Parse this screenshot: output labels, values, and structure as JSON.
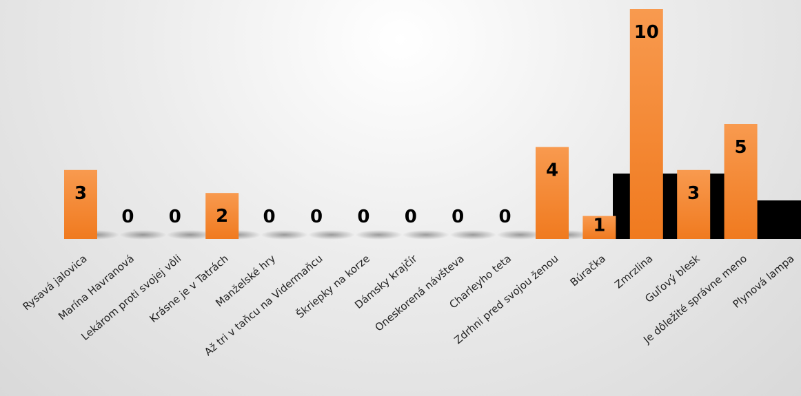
{
  "chart_data": {
    "type": "bar",
    "title": "",
    "xlabel": "",
    "ylabel": "",
    "ylim": [
      0,
      10
    ],
    "grid": false,
    "legend": "none",
    "categories": [
      "Rysavá jalovica",
      "Marína Havranová",
      "Lekárom proti svojej vôli",
      "Krásne je v Tatrách",
      "Manželské hry",
      "Až tri v taňcu na Vidermaňcu",
      "Škriepky na korze",
      "Dámsky krajčír",
      "Oneskorená návšteva",
      "Charleyho teta",
      "Zdrhni pred svojou ženou",
      "Búračka",
      "Zmrzlina",
      "Guľový blesk",
      "Je dôležité správne meno",
      "Plynová lampa"
    ],
    "values": [
      3,
      0,
      0,
      2,
      0,
      0,
      0,
      0,
      0,
      0,
      4,
      1,
      10,
      3,
      5,
      0
    ],
    "value_labels": [
      "3",
      "0",
      "0",
      "2",
      "0",
      "0",
      "0",
      "0",
      "0",
      "0",
      "4",
      "1",
      "10",
      "3",
      "5",
      ""
    ],
    "bar_color": "#f68d3a",
    "bar_color_dark": "#f07a1f",
    "background_step_color": "#000000"
  }
}
